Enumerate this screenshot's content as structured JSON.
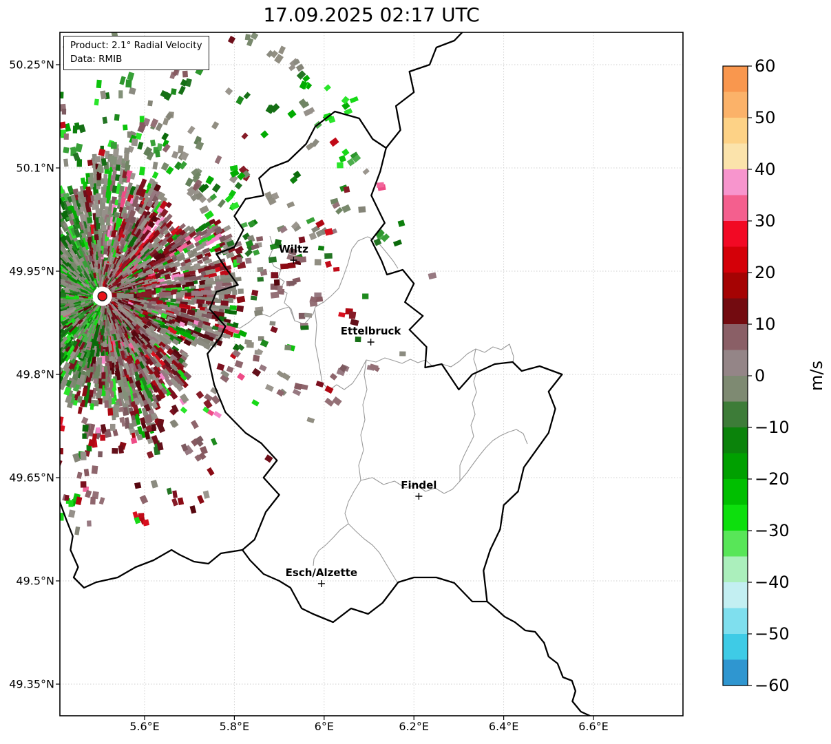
{
  "title": "17.09.2025 02:17 UTC",
  "info_box": {
    "product": "Product: 2.1° Radial Velocity",
    "source": "Data: RMIB"
  },
  "map": {
    "extent": {
      "lon_min": 5.411,
      "lon_max": 6.8,
      "lat_min": 49.304,
      "lat_max": 50.297
    },
    "x_ticks": [
      {
        "lon": 5.6,
        "label": "5.6°E"
      },
      {
        "lon": 5.8,
        "label": "5.8°E"
      },
      {
        "lon": 6.0,
        "label": "6°E"
      },
      {
        "lon": 6.2,
        "label": "6.2°E"
      },
      {
        "lon": 6.4,
        "label": "6.4°E"
      },
      {
        "lon": 6.6,
        "label": "6.6°E"
      }
    ],
    "y_ticks": [
      {
        "lat": 50.25,
        "label": "50.25°N"
      },
      {
        "lat": 50.1,
        "label": "50.1°N"
      },
      {
        "lat": 49.95,
        "label": "49.95°N"
      },
      {
        "lat": 49.8,
        "label": "49.8°N"
      },
      {
        "lat": 49.65,
        "label": "49.65°N"
      },
      {
        "lat": 49.5,
        "label": "49.5°N"
      },
      {
        "lat": 49.35,
        "label": "49.35°N"
      }
    ],
    "grid_color": "#cfcfcf",
    "country_border_color": "#000000",
    "district_border_color": "#9a9a9a"
  },
  "cities": [
    {
      "name": "Wiltz",
      "lon": 5.932,
      "lat": 49.966
    },
    {
      "name": "Ettelbruck",
      "lon": 6.104,
      "lat": 49.847
    },
    {
      "name": "Findel",
      "lon": 6.211,
      "lat": 49.623
    },
    {
      "name": "Esch/Alzette",
      "lon": 5.994,
      "lat": 49.496
    }
  ],
  "radar_site": {
    "lon": 5.506,
    "lat": 49.9135,
    "fill": "#e8131b",
    "edge": "#1a1a1a"
  },
  "colorbar": {
    "unit": "m/s",
    "min": -60,
    "max": 60,
    "ticks": [
      {
        "value": 60,
        "label": "60"
      },
      {
        "value": 50,
        "label": "50"
      },
      {
        "value": 40,
        "label": "40"
      },
      {
        "value": 30,
        "label": "30"
      },
      {
        "value": 20,
        "label": "20"
      },
      {
        "value": 10,
        "label": "10"
      },
      {
        "value": 0,
        "label": "0"
      },
      {
        "value": -10,
        "label": "−10"
      },
      {
        "value": -20,
        "label": "−20"
      },
      {
        "value": -30,
        "label": "−30"
      },
      {
        "value": -40,
        "label": "−40"
      },
      {
        "value": -50,
        "label": "−50"
      },
      {
        "value": -60,
        "label": "−60"
      }
    ],
    "bands_top_to_bottom": [
      "#f9974e",
      "#fbb269",
      "#fdd286",
      "#fbe3ab",
      "#f795cd",
      "#f45f8e",
      "#f20924",
      "#d40008",
      "#a50303",
      "#730b10",
      "#8a5f66",
      "#948587",
      "#7e8a72",
      "#3d7c38",
      "#0b830b",
      "#00a000",
      "#00bf00",
      "#0ddf0d",
      "#58e658",
      "#abefbc",
      "#c3eff2",
      "#7fdfee",
      "#3ecbe6",
      "#2f96d0"
    ]
  },
  "radar_palette": {
    "gray": [
      "#918e82",
      "#96918a",
      "#8b8b80",
      "#9b968e",
      "#858578"
    ],
    "ggreen": [
      "#79896d",
      "#6f8563",
      "#839179",
      "#64805a"
    ],
    "mauve": [
      "#8e656c",
      "#947076",
      "#875a61",
      "#977981",
      "#7d5a60"
    ],
    "dred": [
      "#7c101f",
      "#6e0e19",
      "#8b0a14",
      "#63101a",
      "#861b27",
      "#56060e"
    ],
    "red": [
      "#c10a18",
      "#d90f1e",
      "#af0712"
    ],
    "bgreen": [
      "#0cc20c",
      "#17d917",
      "#02ab02",
      "#2ae52a"
    ],
    "dgreen": [
      "#156f15",
      "#0d7f0d",
      "#1d8a1d",
      "#0a6a0a",
      "#247524"
    ],
    "mgreen": [
      "#37a037",
      "#2d962d",
      "#4cae4c"
    ],
    "pink": [
      "#f2659b",
      "#ee4b86",
      "#f585c8",
      "#fa9ad2"
    ],
    "orange": [
      "#f59a52"
    ],
    "pale": [
      "#bfeef0",
      "#aee9bb",
      "#5ce65c"
    ]
  },
  "chart_data": {
    "type": "map",
    "product": "2.1° Radial Velocity",
    "data_source": "RMIB",
    "timestamp": "17.09.2025 02:17 UTC",
    "colorbar_unit": "m/s",
    "colorbar_range": [
      -60,
      60
    ],
    "lon_range_deg_e": [
      5.411,
      6.8
    ],
    "lat_range_deg_n": [
      49.304,
      50.297
    ],
    "labeled_places": [
      "Wiltz",
      "Ettelbruck",
      "Findel",
      "Esch/Alzette"
    ]
  }
}
